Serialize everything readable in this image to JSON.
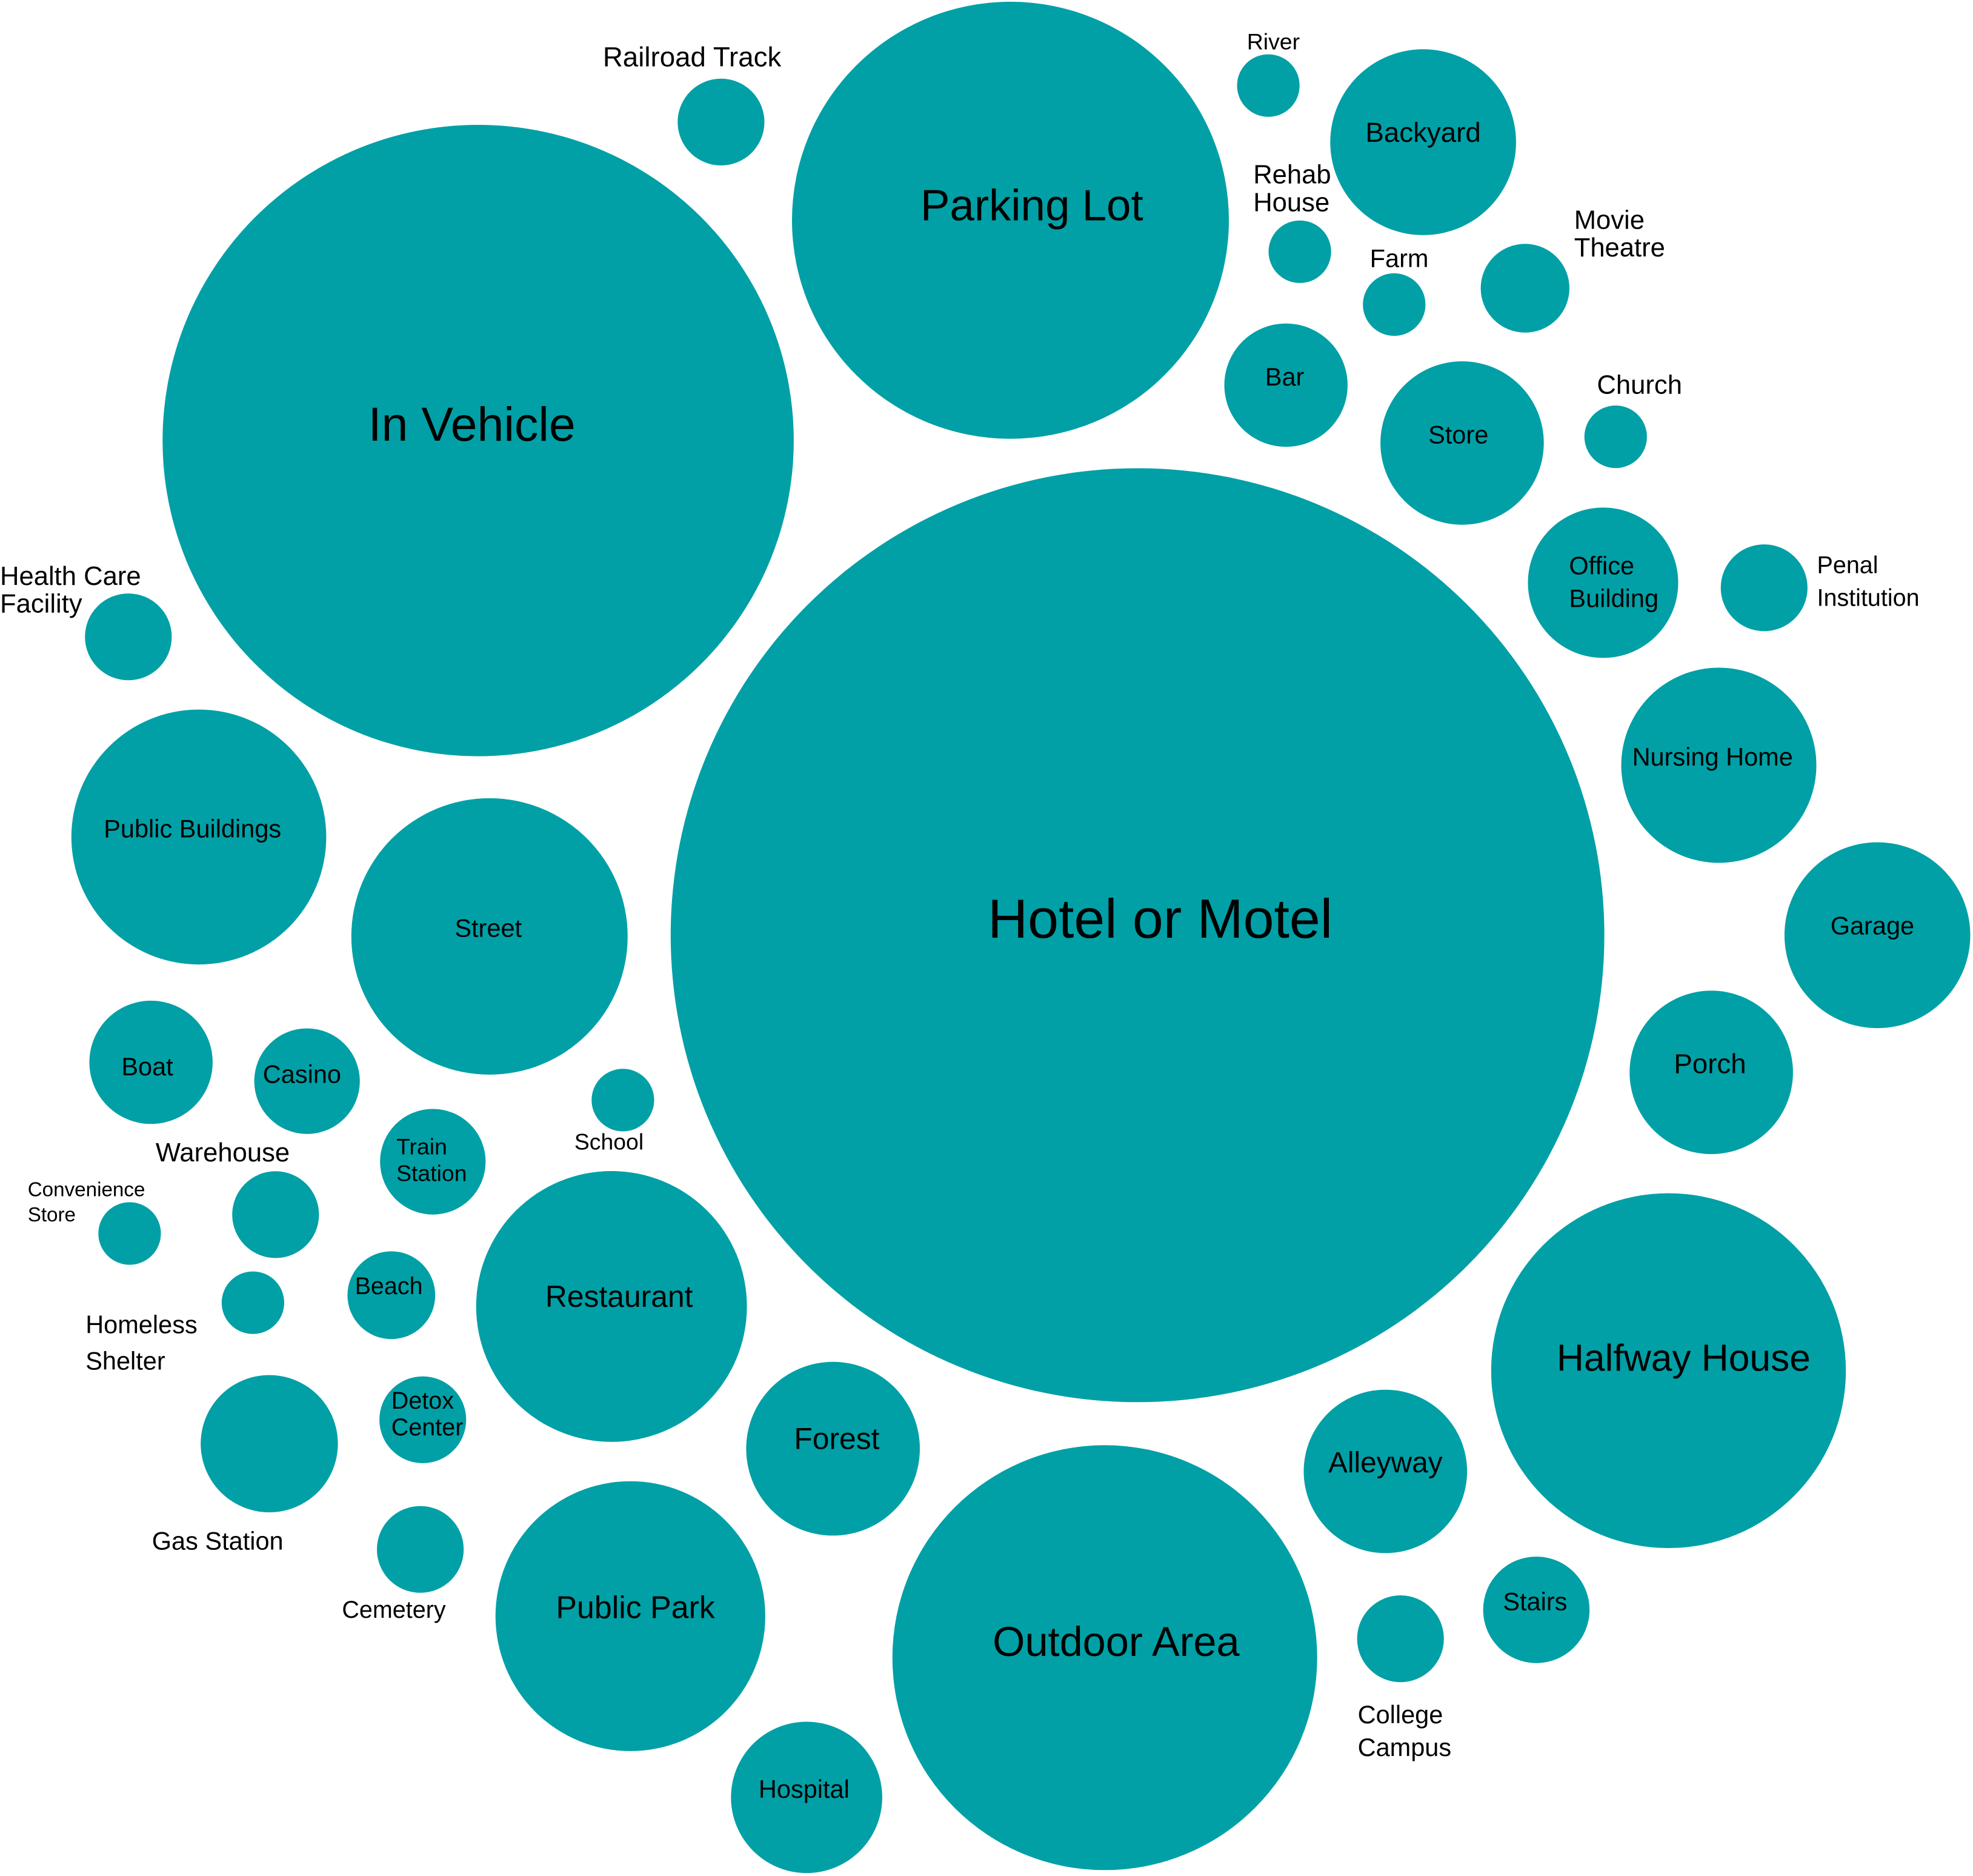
{
  "chart_data": {
    "type": "bubble",
    "title": "",
    "bubble_color": "#00a0a6",
    "label_color": "#000000",
    "background": "#ffffff",
    "legend": "none",
    "grid": false,
    "bubbles": [
      {
        "label": "Hotel or Motel",
        "lines": [
          "Hotel or Motel"
        ],
        "radius_rel": 1.0
      },
      {
        "label": "In Vehicle",
        "lines": [
          "In Vehicle"
        ],
        "radius_rel": 0.676
      },
      {
        "label": "Parking Lot",
        "lines": [
          "Parking Lot"
        ],
        "radius_rel": 0.468
      },
      {
        "label": "Outdoor Area",
        "lines": [
          "Outdoor Area"
        ],
        "radius_rel": 0.455
      },
      {
        "label": "Halfway House",
        "lines": [
          "Halfway House"
        ],
        "radius_rel": 0.38
      },
      {
        "label": "Street",
        "lines": [
          "Street"
        ],
        "radius_rel": 0.296
      },
      {
        "label": "Restaurant",
        "lines": [
          "Restaurant"
        ],
        "radius_rel": 0.29
      },
      {
        "label": "Public Park",
        "lines": [
          "Public Park"
        ],
        "radius_rel": 0.289
      },
      {
        "label": "Public Buildings",
        "lines": [
          "Public Buildings"
        ],
        "radius_rel": 0.273
      },
      {
        "label": "Nursing Home",
        "lines": [
          "Nursing Home"
        ],
        "radius_rel": 0.209
      },
      {
        "label": "Backyard",
        "lines": [
          "Backyard"
        ],
        "radius_rel": 0.199
      },
      {
        "label": "Garage",
        "lines": [
          "Garage"
        ],
        "radius_rel": 0.199
      },
      {
        "label": "Forest",
        "lines": [
          "Forest"
        ],
        "radius_rel": 0.186
      },
      {
        "label": "Store",
        "lines": [
          "Store"
        ],
        "radius_rel": 0.175
      },
      {
        "label": "Porch",
        "lines": [
          "Porch"
        ],
        "radius_rel": 0.175
      },
      {
        "label": "Alleyway",
        "lines": [
          "Alleyway"
        ],
        "radius_rel": 0.175
      },
      {
        "label": "Hospital",
        "lines": [
          "Hospital"
        ],
        "radius_rel": 0.162
      },
      {
        "label": "Office Building",
        "lines": [
          "Office",
          "Building"
        ],
        "radius_rel": 0.161
      },
      {
        "label": "Gas Station",
        "lines": [
          "Gas Station"
        ],
        "radius_rel": 0.147
      },
      {
        "label": "Bar",
        "lines": [
          "Bar"
        ],
        "radius_rel": 0.132
      },
      {
        "label": "Boat",
        "lines": [
          "Boat"
        ],
        "radius_rel": 0.132
      },
      {
        "label": "Stairs",
        "lines": [
          "Stairs"
        ],
        "radius_rel": 0.114
      },
      {
        "label": "Casino",
        "lines": [
          "Casino"
        ],
        "radius_rel": 0.113
      },
      {
        "label": "Train Station",
        "lines": [
          "Train",
          "Station"
        ],
        "radius_rel": 0.113
      },
      {
        "label": "Movie Theatre",
        "lines": [
          "Movie",
          "Theatre"
        ],
        "radius_rel": 0.095
      },
      {
        "label": "Beach",
        "lines": [
          "Beach"
        ],
        "radius_rel": 0.094
      },
      {
        "label": "Warehouse",
        "lines": [
          "Warehouse"
        ],
        "radius_rel": 0.093
      },
      {
        "label": "Cemetery",
        "lines": [
          "Cemetery"
        ],
        "radius_rel": 0.093
      },
      {
        "label": "College Campus",
        "lines": [
          "College",
          "Campus"
        ],
        "radius_rel": 0.093
      },
      {
        "label": "Railroad Track",
        "lines": [
          "Railroad Track"
        ],
        "radius_rel": 0.093
      },
      {
        "label": "Health Care Facility",
        "lines": [
          "Health Care",
          "Facility"
        ],
        "radius_rel": 0.093
      },
      {
        "label": "Penal Institution",
        "lines": [
          "Penal",
          "Institution"
        ],
        "radius_rel": 0.093
      },
      {
        "label": "Detox Center",
        "lines": [
          "Detox",
          "Center"
        ],
        "radius_rel": 0.093
      },
      {
        "label": "River",
        "lines": [
          "River"
        ],
        "radius_rel": 0.067
      },
      {
        "label": "Rehab House",
        "lines": [
          "Rehab",
          "House"
        ],
        "radius_rel": 0.067
      },
      {
        "label": "Farm",
        "lines": [
          "Farm"
        ],
        "radius_rel": 0.067
      },
      {
        "label": "Church",
        "lines": [
          "Church"
        ],
        "radius_rel": 0.067
      },
      {
        "label": "School",
        "lines": [
          "School"
        ],
        "radius_rel": 0.067
      },
      {
        "label": "Convenience Store",
        "lines": [
          "Convenience",
          "Store"
        ],
        "radius_rel": 0.067
      },
      {
        "label": "Homeless Shelter",
        "lines": [
          "Homeless",
          "Shelter"
        ],
        "radius_rel": 0.067
      }
    ]
  }
}
